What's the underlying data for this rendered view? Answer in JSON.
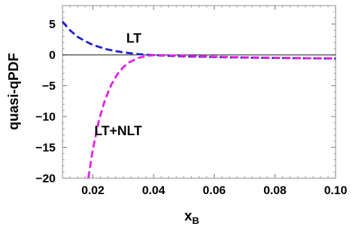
{
  "chart_data": {
    "type": "line",
    "xlabel": "x",
    "xlabel_sub": "B",
    "ylabel": "quasi-qPDF",
    "xlim": [
      0.01,
      0.1
    ],
    "ylim": [
      -20,
      8
    ],
    "xticks": [
      0.02,
      0.04,
      0.06,
      0.08,
      0.1
    ],
    "xtick_labels": [
      "0.02",
      "0.04",
      "0.06",
      "0.08",
      "0.10"
    ],
    "yticks": [
      5,
      0,
      -5,
      -10,
      -15,
      -20
    ],
    "ytick_labels": [
      "5",
      "0",
      "−5",
      "−10",
      "−15",
      "−20"
    ],
    "zero_line": true,
    "grid": false,
    "series": [
      {
        "name": "LT",
        "color": "#1f1fd6",
        "style": "dashed",
        "x": [
          0.01,
          0.012,
          0.015,
          0.018,
          0.02,
          0.025,
          0.03,
          0.035,
          0.04,
          0.045,
          0.05,
          0.06,
          0.07,
          0.08,
          0.09,
          0.1
        ],
        "y": [
          5.4,
          4.2,
          2.9,
          2.1,
          1.6,
          0.85,
          0.4,
          0.12,
          -0.05,
          -0.15,
          -0.25,
          -0.35,
          -0.45,
          -0.5,
          -0.55,
          -0.6
        ]
      },
      {
        "name": "LT+NLT",
        "color": "#e61ee6",
        "style": "dashed",
        "x": [
          0.0185,
          0.02,
          0.022,
          0.024,
          0.026,
          0.028,
          0.03,
          0.032,
          0.035,
          0.038,
          0.04,
          0.045,
          0.05,
          0.06,
          0.07,
          0.08,
          0.09,
          0.1
        ],
        "y": [
          -20.0,
          -15.3,
          -10.6,
          -7.3,
          -4.9,
          -3.2,
          -2.0,
          -1.2,
          -0.5,
          -0.15,
          -0.05,
          -0.08,
          -0.15,
          -0.3,
          -0.4,
          -0.48,
          -0.54,
          -0.58
        ]
      }
    ],
    "annotations": [
      {
        "text": "LT",
        "x": 0.031,
        "y": 2.0
      },
      {
        "text": "LT+NLT",
        "x": 0.0205,
        "y": -13.0
      }
    ]
  }
}
